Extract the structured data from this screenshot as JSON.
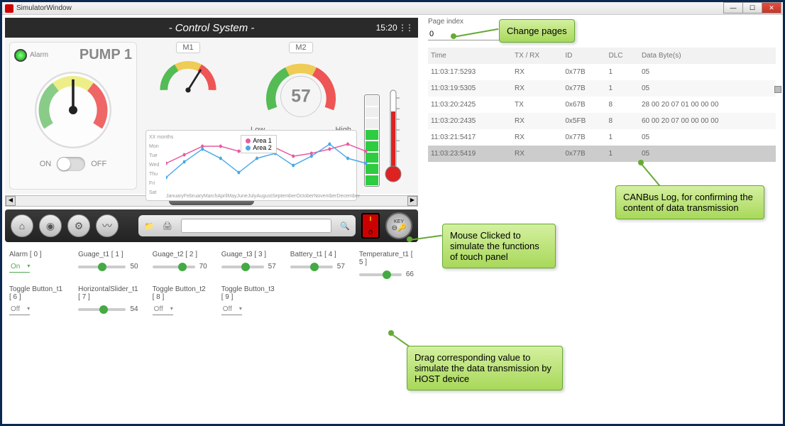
{
  "window": {
    "title": "SimulatorWindow"
  },
  "panel": {
    "title": "- Control System -",
    "time": "15:20"
  },
  "pump": {
    "alarm_label": "Alarm",
    "title": "PUMP 1",
    "on": "ON",
    "off": "OFF"
  },
  "mini": {
    "m1": "M1",
    "m2": "M2",
    "low": "Low",
    "high": "High",
    "big_value": "57"
  },
  "chart": {
    "legend": [
      "Area 1",
      "Area 2"
    ],
    "colors": [
      "#e85aa0",
      "#4aa8e8"
    ],
    "months": [
      "January",
      "February",
      "March",
      "April",
      "May",
      "June",
      "July",
      "August",
      "September",
      "October",
      "November",
      "December"
    ],
    "days": [
      "XX months",
      "Mon",
      "Tue",
      "Wed",
      "Thu",
      "Fri",
      "Sat"
    ],
    "series": [
      [
        38,
        50,
        62,
        62,
        55,
        58,
        60,
        48,
        52,
        58,
        65,
        55
      ],
      [
        18,
        40,
        58,
        45,
        25,
        45,
        52,
        35,
        48,
        65,
        45,
        38
      ]
    ]
  },
  "battery": {
    "level": 5,
    "segments": 8,
    "color": "#2ecc40"
  },
  "thermometer": {
    "pct": 75,
    "color": "#d22"
  },
  "toolbar": {
    "key": "KEY"
  },
  "page_index": {
    "label": "Page index",
    "value": "0"
  },
  "log": {
    "headers": [
      "Time",
      "TX / RX",
      "ID",
      "DLC",
      "Data Byte(s)"
    ],
    "rows": [
      {
        "time": "11:03:17:5293",
        "dir": "RX",
        "id": "0x77B",
        "dlc": "1",
        "data": "05"
      },
      {
        "time": "11:03:19:5305",
        "dir": "RX",
        "id": "0x77B",
        "dlc": "1",
        "data": "05"
      },
      {
        "time": "11:03:20:2425",
        "dir": "TX",
        "id": "0x67B",
        "dlc": "8",
        "data": "28 00 20 07 01 00 00 00"
      },
      {
        "time": "11:03:20:2435",
        "dir": "RX",
        "id": "0x5FB",
        "dlc": "8",
        "data": "60 00 20 07 00 00 00 00"
      },
      {
        "time": "11:03:21:5417",
        "dir": "RX",
        "id": "0x77B",
        "dlc": "1",
        "data": "05"
      },
      {
        "time": "11:03:23:5419",
        "dir": "RX",
        "id": "0x77B",
        "dlc": "1",
        "data": "05"
      }
    ],
    "selected": 5
  },
  "controls_r1": [
    {
      "label": "Alarm  [ 0 ]",
      "type": "drop",
      "value": "On",
      "green": true
    },
    {
      "label": "Guage_t1  [ 1 ]",
      "type": "slider",
      "value": 50,
      "max": 100
    },
    {
      "label": "Guage_t2  [ 2 ]",
      "type": "slider",
      "value": 70,
      "max": 100
    },
    {
      "label": "Guage_t3  [ 3 ]",
      "type": "slider",
      "value": 57,
      "max": 100
    },
    {
      "label": "Battery_t1  [ 4 ]",
      "type": "slider",
      "value": 57,
      "max": 100
    },
    {
      "label": "Temperature_t1  [ 5 ]",
      "type": "slider",
      "value": 66,
      "max": 100
    }
  ],
  "controls_r2": [
    {
      "label": "Toggle Button_t1  [ 6 ]",
      "type": "drop",
      "value": "Off",
      "green": false
    },
    {
      "label": "HorizontalSlider_t1  [ 7 ]",
      "type": "slider",
      "value": 54,
      "max": 100
    },
    {
      "label": "Toggle Button_t2  [ 8 ]",
      "type": "drop",
      "value": "Off",
      "green": false
    },
    {
      "label": "Toggle Button_t3  [ 9 ]",
      "type": "drop",
      "value": "Off",
      "green": false
    }
  ],
  "callouts": {
    "pages": "Change pages",
    "mouse": "Mouse Clicked to simulate the functions of touch panel",
    "canbus": "CANBus Log,  for confirming the content of data transmission",
    "drag": "Drag corresponding value to simulate the data transmission by HOST device"
  }
}
